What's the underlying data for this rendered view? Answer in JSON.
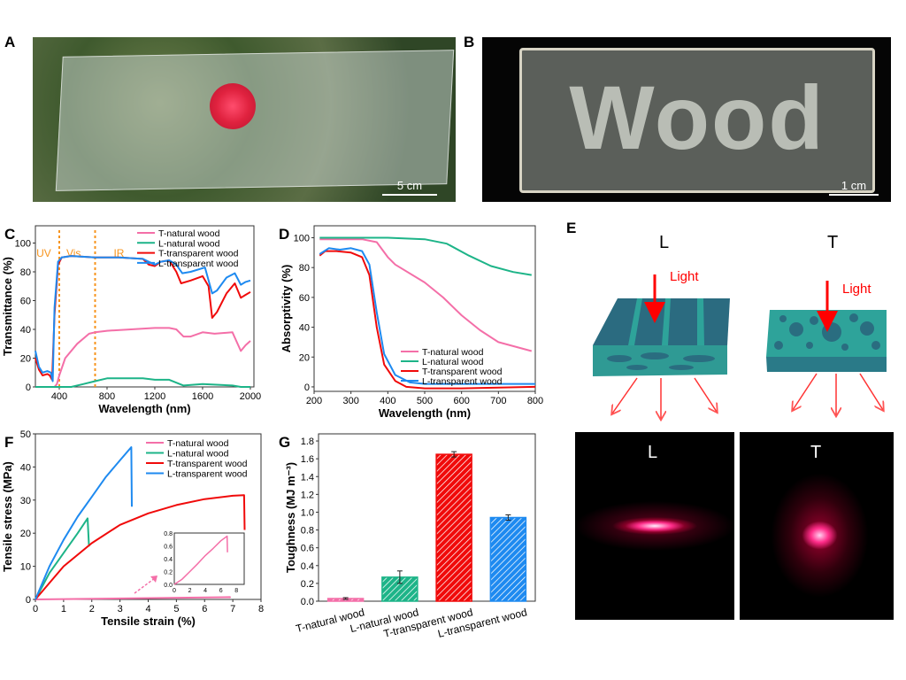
{
  "panels": {
    "A": "A",
    "B": "B",
    "C": "C",
    "D": "D",
    "E": "E",
    "F": "F",
    "G": "G"
  },
  "photo_a": {
    "scale_bar": "5 cm"
  },
  "photo_b": {
    "sample_text": "Wood",
    "scale_bar": "1 cm"
  },
  "schematic_e": {
    "left_title": "L",
    "right_title": "T",
    "light_label": "Light",
    "photo_left_label": "L",
    "photo_right_label": "T"
  },
  "colors": {
    "T-natural wood": "#f46fa8",
    "L-natural wood": "#1db488",
    "T-transparent wood": "#f00a0a",
    "L-transparent wood": "#1e8af0",
    "annot": "#f7941d"
  },
  "chart_data": [
    {
      "id": "C",
      "type": "line",
      "xlabel": "Wavelength (nm)",
      "ylabel": "Transmittance (%)",
      "xlim": [
        200,
        2030
      ],
      "ylim": [
        0,
        112
      ],
      "xticks": [
        400,
        800,
        1200,
        1600,
        2000
      ],
      "yticks": [
        0,
        20,
        40,
        60,
        80,
        100
      ],
      "legend": "top-right",
      "annotations": [
        {
          "text": "UV",
          "x": 270
        },
        {
          "text": "Vis",
          "x": 520
        },
        {
          "text": "IR",
          "x": 900
        }
      ],
      "vlines": [
        400,
        700
      ],
      "series": [
        {
          "name": "T-natural wood",
          "points": [
            [
              200,
              0
            ],
            [
              360,
              0
            ],
            [
              380,
              2
            ],
            [
              400,
              8
            ],
            [
              450,
              20
            ],
            [
              550,
              30
            ],
            [
              650,
              37
            ],
            [
              700,
              38
            ],
            [
              800,
              39
            ],
            [
              1000,
              40
            ],
            [
              1200,
              41
            ],
            [
              1320,
              41
            ],
            [
              1380,
              40
            ],
            [
              1440,
              35
            ],
            [
              1500,
              35
            ],
            [
              1600,
              38
            ],
            [
              1700,
              37
            ],
            [
              1850,
              38
            ],
            [
              1920,
              25
            ],
            [
              1960,
              29
            ],
            [
              2000,
              32
            ]
          ]
        },
        {
          "name": "L-natural wood",
          "points": [
            [
              200,
              0
            ],
            [
              500,
              0
            ],
            [
              600,
              2
            ],
            [
              700,
              4
            ],
            [
              800,
              6
            ],
            [
              1000,
              6
            ],
            [
              1100,
              6
            ],
            [
              1200,
              5
            ],
            [
              1320,
              5
            ],
            [
              1440,
              1
            ],
            [
              1600,
              2
            ],
            [
              1850,
              1
            ],
            [
              1920,
              0
            ],
            [
              2000,
              0
            ]
          ]
        },
        {
          "name": "T-transparent wood",
          "points": [
            [
              200,
              20
            ],
            [
              230,
              12
            ],
            [
              260,
              8
            ],
            [
              300,
              9
            ],
            [
              320,
              8
            ],
            [
              340,
              5
            ],
            [
              360,
              50
            ],
            [
              390,
              85
            ],
            [
              420,
              90
            ],
            [
              500,
              91
            ],
            [
              700,
              90
            ],
            [
              900,
              90
            ],
            [
              1100,
              89
            ],
            [
              1150,
              85
            ],
            [
              1200,
              84
            ],
            [
              1250,
              87
            ],
            [
              1320,
              88
            ],
            [
              1380,
              80
            ],
            [
              1420,
              72
            ],
            [
              1500,
              74
            ],
            [
              1600,
              77
            ],
            [
              1650,
              70
            ],
            [
              1680,
              48
            ],
            [
              1720,
              52
            ],
            [
              1800,
              65
            ],
            [
              1870,
              72
            ],
            [
              1920,
              62
            ],
            [
              1960,
              64
            ],
            [
              2000,
              66
            ]
          ]
        },
        {
          "name": "L-transparent wood",
          "points": [
            [
              200,
              25
            ],
            [
              230,
              14
            ],
            [
              260,
              10
            ],
            [
              300,
              11
            ],
            [
              330,
              10
            ],
            [
              345,
              4
            ],
            [
              360,
              55
            ],
            [
              390,
              87
            ],
            [
              420,
              90
            ],
            [
              500,
              91
            ],
            [
              700,
              90
            ],
            [
              900,
              90
            ],
            [
              1100,
              89
            ],
            [
              1150,
              87
            ],
            [
              1200,
              85
            ],
            [
              1250,
              87
            ],
            [
              1320,
              88
            ],
            [
              1380,
              85
            ],
            [
              1430,
              79
            ],
            [
              1500,
              80
            ],
            [
              1620,
              83
            ],
            [
              1680,
              65
            ],
            [
              1720,
              67
            ],
            [
              1800,
              76
            ],
            [
              1870,
              79
            ],
            [
              1920,
              71
            ],
            [
              1960,
              73
            ],
            [
              2000,
              74
            ]
          ]
        }
      ]
    },
    {
      "id": "D",
      "type": "line",
      "xlabel": "Wavelength (nm)",
      "ylabel": "Absorptivity (%)",
      "xlim": [
        200,
        800
      ],
      "ylim": [
        -3,
        108
      ],
      "xticks": [
        200,
        300,
        400,
        500,
        600,
        700,
        800
      ],
      "yticks": [
        0,
        20,
        40,
        60,
        80,
        100
      ],
      "legend": "bottom-right",
      "series": [
        {
          "name": "T-natural wood",
          "points": [
            [
              215,
              99
            ],
            [
              330,
              99
            ],
            [
              370,
              97
            ],
            [
              400,
              87
            ],
            [
              420,
              82
            ],
            [
              500,
              70
            ],
            [
              550,
              60
            ],
            [
              600,
              48
            ],
            [
              650,
              38
            ],
            [
              700,
              30
            ],
            [
              790,
              24
            ]
          ]
        },
        {
          "name": "L-natural wood",
          "points": [
            [
              215,
              100
            ],
            [
              400,
              100
            ],
            [
              500,
              99
            ],
            [
              560,
              96
            ],
            [
              620,
              88
            ],
            [
              680,
              81
            ],
            [
              740,
              77
            ],
            [
              790,
              75
            ]
          ]
        },
        {
          "name": "T-transparent wood",
          "points": [
            [
              215,
              88
            ],
            [
              230,
              91
            ],
            [
              260,
              91
            ],
            [
              300,
              90
            ],
            [
              330,
              87
            ],
            [
              350,
              75
            ],
            [
              370,
              40
            ],
            [
              390,
              15
            ],
            [
              420,
              4
            ],
            [
              450,
              0
            ],
            [
              500,
              -1
            ],
            [
              600,
              -1
            ],
            [
              800,
              0
            ]
          ]
        },
        {
          "name": "L-transparent wood",
          "points": [
            [
              215,
              89
            ],
            [
              240,
              93
            ],
            [
              270,
              92
            ],
            [
              300,
              93
            ],
            [
              330,
              91
            ],
            [
              350,
              82
            ],
            [
              370,
              50
            ],
            [
              390,
              22
            ],
            [
              420,
              8
            ],
            [
              460,
              3
            ],
            [
              500,
              2
            ],
            [
              800,
              2
            ]
          ]
        }
      ]
    },
    {
      "id": "F",
      "type": "line",
      "xlabel": "Tensile strain (%)",
      "ylabel": "Tensile stress (MPa)",
      "xlim": [
        0,
        8
      ],
      "ylim": [
        0,
        50
      ],
      "xticks": [
        0,
        1,
        2,
        3,
        4,
        5,
        6,
        7,
        8
      ],
      "yticks": [
        0,
        10,
        20,
        30,
        40,
        50
      ],
      "legend": "top-right",
      "series": [
        {
          "name": "T-natural wood",
          "points": [
            [
              0,
              0
            ],
            [
              6.9,
              0.7
            ],
            [
              6.92,
              0.5
            ]
          ]
        },
        {
          "name": "L-natural wood",
          "points": [
            [
              0,
              0
            ],
            [
              0.5,
              8
            ],
            [
              1,
              14
            ],
            [
              1.5,
              20
            ],
            [
              1.85,
              24.5
            ],
            [
              1.9,
              16
            ]
          ]
        },
        {
          "name": "T-transparent wood",
          "points": [
            [
              0,
              0
            ],
            [
              1,
              10
            ],
            [
              2,
              17
            ],
            [
              3,
              22.5
            ],
            [
              4,
              26
            ],
            [
              5,
              28.5
            ],
            [
              6,
              30.3
            ],
            [
              7,
              31.3
            ],
            [
              7.4,
              31.5
            ],
            [
              7.42,
              21
            ]
          ]
        },
        {
          "name": "L-transparent wood",
          "points": [
            [
              0,
              0
            ],
            [
              0.5,
              10
            ],
            [
              1,
              18
            ],
            [
              1.5,
              25
            ],
            [
              2,
              31
            ],
            [
              2.5,
              37
            ],
            [
              3,
              42
            ],
            [
              3.4,
              46
            ],
            [
              3.42,
              28
            ]
          ]
        }
      ],
      "inset": {
        "xlim": [
          0,
          9
        ],
        "ylim": [
          0,
          0.8
        ],
        "xticks": [
          0,
          2,
          4,
          6,
          8
        ],
        "yticks": [
          0.0,
          0.2,
          0.4,
          0.6,
          0.8
        ],
        "series": {
          "name": "T-natural wood",
          "points": [
            [
              0,
              0
            ],
            [
              1,
              0.08
            ],
            [
              2,
              0.2
            ],
            [
              3,
              0.32
            ],
            [
              4,
              0.45
            ],
            [
              5,
              0.56
            ],
            [
              6,
              0.68
            ],
            [
              6.8,
              0.75
            ],
            [
              6.85,
              0.5
            ]
          ]
        }
      }
    },
    {
      "id": "G",
      "type": "bar",
      "xlabel": "",
      "ylabel": "Toughness (MJ m⁻³)",
      "ylim": [
        0,
        1.88
      ],
      "yticks": [
        "0.0",
        "0.2",
        "0.4",
        "0.6",
        "0.8",
        "1.0",
        "1.2",
        "1.4",
        "1.6",
        "1.8"
      ],
      "categories": [
        "T-natural wood",
        "L-natural wood",
        "T-transparent wood",
        "L-transparent wood"
      ],
      "values": [
        0.03,
        0.27,
        1.65,
        0.94
      ],
      "errors": [
        0.01,
        0.07,
        0.03,
        0.03
      ]
    }
  ]
}
